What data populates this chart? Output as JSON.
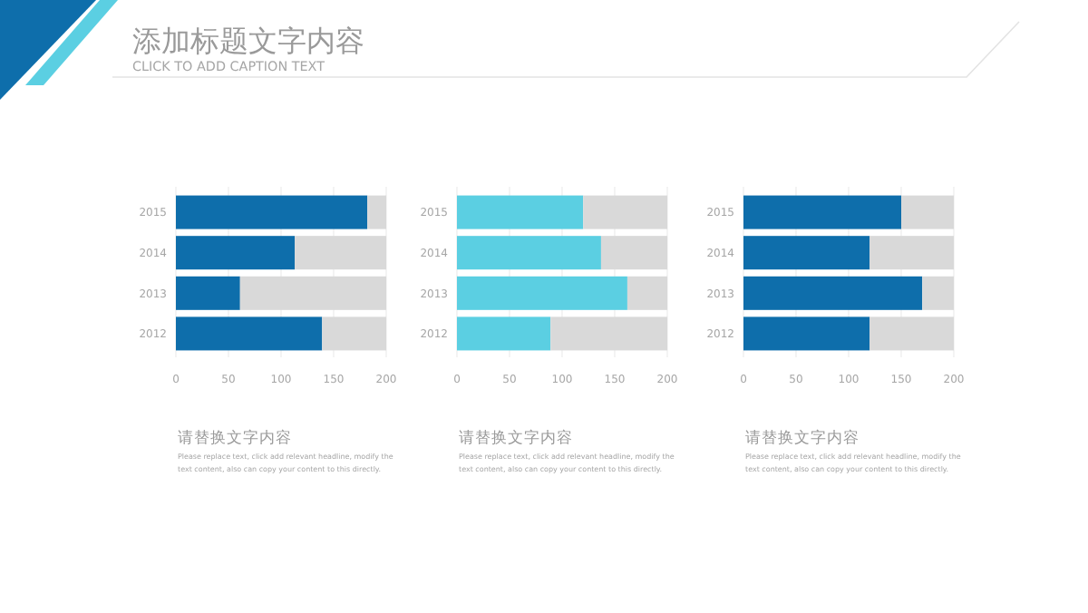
{
  "chart_data": [
    {
      "type": "bar",
      "title": "添加标题文字内容",
      "subtitle": "CLICK TO ADD CAPTION TEXT",
      "orientation": "horizontal",
      "stacked": true,
      "categories": [
        "2015",
        "2014",
        "2013",
        "2012"
      ],
      "series": [
        {
          "color": "#0e6eab",
          "values": [
            182,
            113,
            61,
            139
          ]
        },
        {
          "color": "#d9d9d9",
          "values": [
            18,
            87,
            139,
            61
          ]
        }
      ],
      "xlim": [
        0,
        200
      ],
      "xticks": [
        0,
        50,
        100,
        150,
        200
      ],
      "grid": "x",
      "annotations": [
        "请替换文字内容",
        "Please replace text, click add relevant headline, modify the text content, also can copy your content to this directly."
      ]
    },
    {
      "type": "bar",
      "orientation": "horizontal",
      "stacked": true,
      "categories": [
        "2015",
        "2014",
        "2013",
        "2012"
      ],
      "series": [
        {
          "color": "#5bcfe2",
          "values": [
            120,
            137,
            162,
            89
          ]
        },
        {
          "color": "#d9d9d9",
          "values": [
            80,
            63,
            38,
            111
          ]
        }
      ],
      "xlim": [
        0,
        200
      ],
      "xticks": [
        0,
        50,
        100,
        150,
        200
      ],
      "grid": "x",
      "annotations": [
        "请替换文字内容",
        "Please replace text, click add relevant headline, modify the text content, also can copy your content to this directly."
      ]
    },
    {
      "type": "bar",
      "orientation": "horizontal",
      "stacked": true,
      "categories": [
        "2015",
        "2014",
        "2013",
        "2012"
      ],
      "series": [
        {
          "color": "#0e6eab",
          "values": [
            150,
            120,
            170,
            120
          ]
        },
        {
          "color": "#d9d9d9",
          "values": [
            50,
            80,
            30,
            80
          ]
        }
      ],
      "xlim": [
        0,
        200
      ],
      "xticks": [
        0,
        50,
        100,
        150,
        200
      ],
      "grid": "x",
      "annotations": [
        "请替换文字内容",
        "Please replace text, click add relevant headline, modify the text content, also can copy your content to this directly."
      ]
    }
  ]
}
